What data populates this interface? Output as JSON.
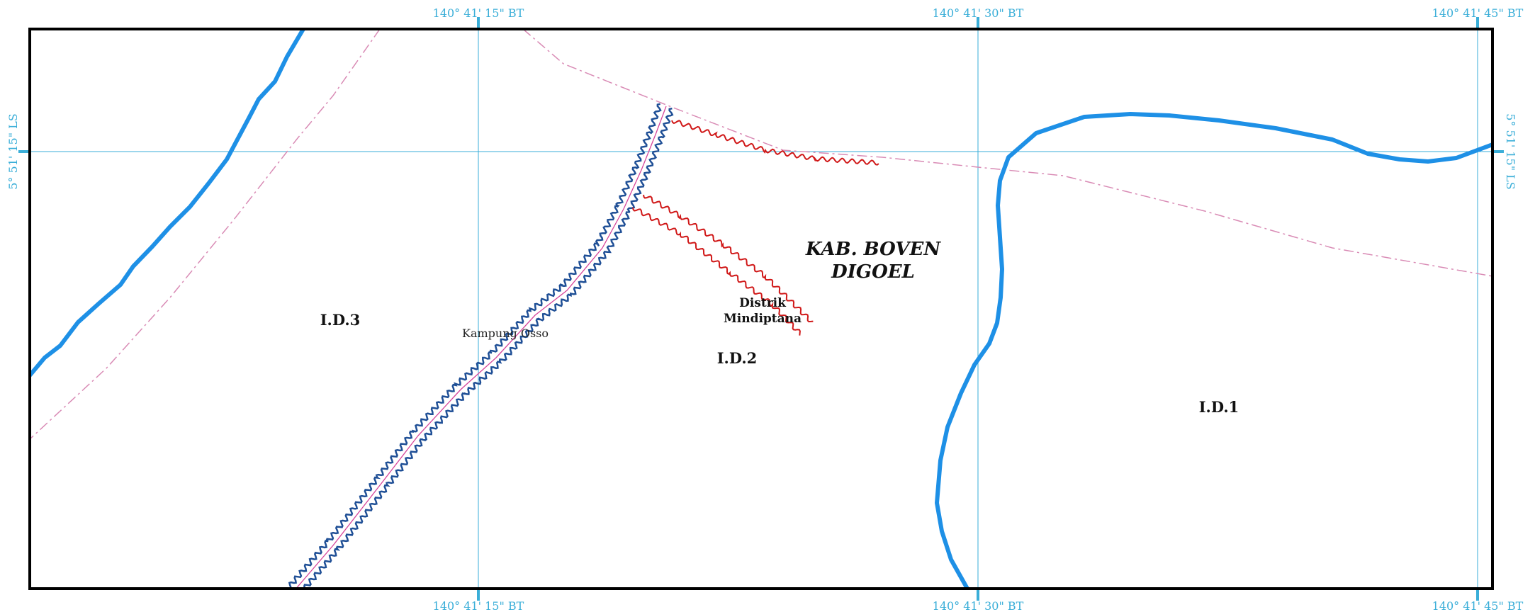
{
  "grid": {
    "lon_labels": [
      "140° 41' 15\" BT",
      "140° 41' 30\" BT",
      "140° 41' 45\" BT"
    ],
    "lat_labels": [
      "5° 51' 15\" LS"
    ]
  },
  "labels": {
    "kab": [
      "KAB. BOVEN",
      "DIGOEL"
    ],
    "district": [
      "Distrik",
      "Mindiptana"
    ],
    "village": "Kampung Osso",
    "zones": [
      "I.D.3",
      "I.D.2",
      "I.D.1"
    ]
  },
  "colors": {
    "frame": "#000000",
    "grid": "#3aaed8",
    "river": "#1e90e6",
    "road_outline": "#1f4f96",
    "road_center": "#d6459a",
    "boundary": "#d98bb5",
    "red_line": "#d01818"
  }
}
